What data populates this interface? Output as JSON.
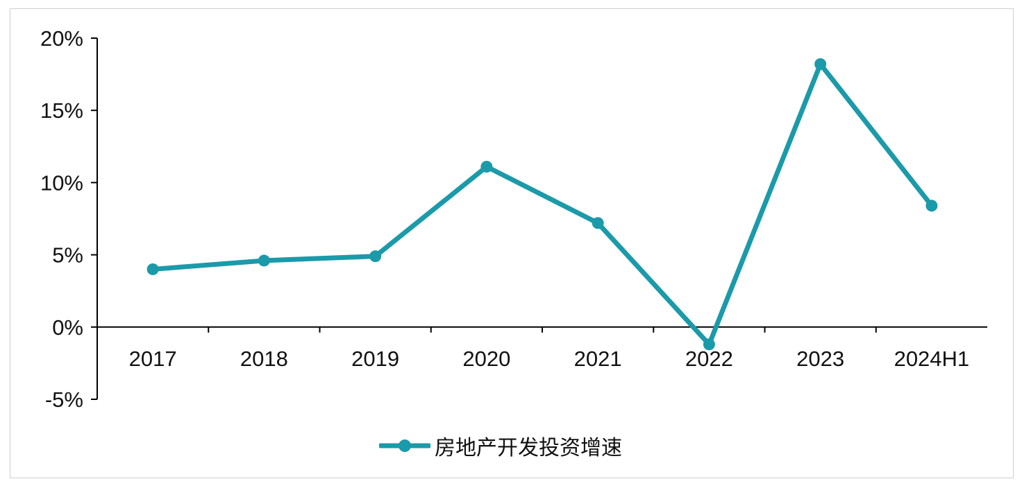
{
  "chart_data": {
    "type": "line",
    "categories": [
      "2017",
      "2018",
      "2019",
      "2020",
      "2021",
      "2022",
      "2023",
      "2024H1"
    ],
    "series": [
      {
        "name": "房地产开发投资增速",
        "values": [
          4.0,
          4.6,
          4.9,
          11.1,
          7.2,
          -1.2,
          18.2,
          8.4
        ],
        "color": "#1b9aaa"
      }
    ],
    "yticks": [
      "-5%",
      "0%",
      "5%",
      "10%",
      "15%",
      "20%"
    ],
    "ytick_values": [
      -5,
      0,
      5,
      10,
      15,
      20
    ],
    "ylim": [
      -5,
      20
    ],
    "title": "",
    "xlabel": "",
    "ylabel": "",
    "grid": false,
    "legend_position": "bottom-center"
  }
}
